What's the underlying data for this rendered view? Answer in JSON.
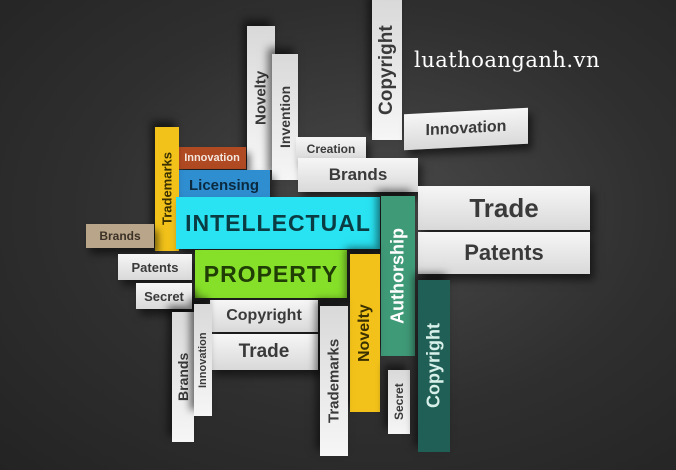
{
  "watermark": "luathoanganh.vn",
  "words": {
    "copyright_top": "Copyright",
    "innovation_right": "Innovation",
    "novelty_top": "Novelty",
    "invention": "Invention",
    "creation": "Creation",
    "brands_mid": "Brands",
    "innovation_small": "Innovation",
    "licensing": "Licensing",
    "trademarks_left": "Trademarks",
    "intellectual": "INTELLECTUAL",
    "trade_right": "Trade",
    "patents_right": "Patents",
    "brands_left": "Brands",
    "patents_left": "Patents",
    "property": "PROPERTY",
    "authorship": "Authorship",
    "secret_left": "Secret",
    "copyright_mid": "Copyright",
    "trade_mid": "Trade",
    "novelty_low": "Novelty",
    "brands_low": "Brands",
    "innovation_low": "Innovation",
    "trademarks_low": "Trademarks",
    "secret_low": "Secret",
    "copyright_low": "Copyright"
  },
  "colors": {
    "yellow": "#f2c21a",
    "rust": "#b04a22",
    "blue": "#2f8ed0",
    "cyan": "#29e3f2",
    "lime": "#86e02a",
    "green": "#3f9a78",
    "teal": "#1f5f55",
    "tan": "#b8a58a"
  }
}
